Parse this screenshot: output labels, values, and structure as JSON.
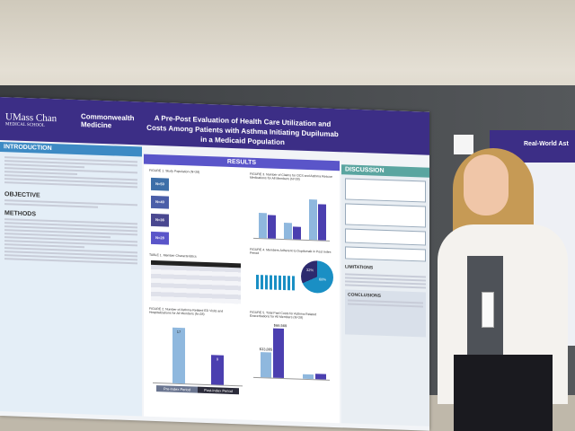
{
  "poster": {
    "logo": "UMass Chan",
    "logo_sub": "MEDICAL SCHOOL",
    "org": "Commonwealth Medicine",
    "title": "A Pre-Post Evaluation of Health Care Utilization and Costs Among Patients with Asthma Initiating Dupilumab in a Medicaid Population",
    "sections": {
      "introduction": "INTRODUCTION",
      "objective": "OBJECTIVE",
      "methods": "METHODS",
      "results": "RESULTS",
      "discussion": "DISCUSSION",
      "limitations": "LIMITATIONS",
      "conclusions": "CONCLUSIONS"
    },
    "figure1": {
      "title": "FIGURE 1. Study Population (N=28)",
      "steps": [
        "N=50",
        "N=40",
        "N=36",
        "N=28"
      ]
    },
    "table1": "TABLE 1. Member Characteristics",
    "figure2": {
      "title": "FIGURE 2. Number of Asthma-Related ED Visits and Hospitalizations for All Members (N=28)",
      "values": [
        "17",
        "9"
      ],
      "categories": [
        "Pre-Index Period",
        "Post-Index Period"
      ]
    },
    "figure3": "FIGURE 3. Number of Claims for OCS and Asthma Rescue Medications for All Members (N=28)",
    "figure4": {
      "title": "FIGURE 4. Members Adherent to Dupilumab in Post Index Period",
      "values": [
        "32%",
        "68%"
      ]
    },
    "figure5": {
      "title": "FIGURE 5. Total Paid Costs for Asthma-Related Exacerbations for All Members (N=28)",
      "values": [
        "$33,885",
        "$66,569"
      ]
    }
  },
  "right_poster": {
    "title": "Real-World Ast"
  },
  "colors": {
    "header": "#3c2e86",
    "accent": "#3d6fa8"
  }
}
